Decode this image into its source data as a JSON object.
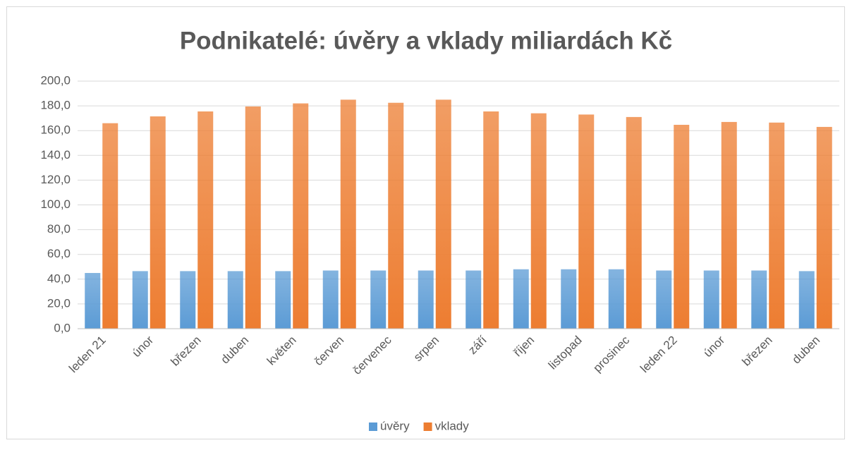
{
  "chart_data": {
    "type": "bar",
    "title": "Podnikatelé: úvěry a vklady miliardách Kč",
    "categories": [
      "leden 21",
      "únor",
      "březen",
      "duben",
      "květen",
      "červen",
      "červenec",
      "srpen",
      "září",
      "říjen",
      "listopad",
      "prosinec",
      "leden 22",
      "únor",
      "březen",
      "duben"
    ],
    "series": [
      {
        "name": "úvěry",
        "color": "#5b9bd5",
        "values": [
          45,
          46.5,
          46.5,
          46.5,
          46.5,
          47,
          47,
          47,
          47,
          48,
          48,
          48,
          47,
          47,
          47,
          46.5
        ]
      },
      {
        "name": "vklady",
        "color": "#ed7d31",
        "values": [
          166,
          171.5,
          175.5,
          179.5,
          182,
          185,
          182.5,
          185,
          175.5,
          174,
          173,
          171,
          164.7,
          167,
          166.5,
          163
        ]
      }
    ],
    "ylim": [
      0,
      200
    ],
    "yticks": [
      {
        "value": 0,
        "label": "0,0"
      },
      {
        "value": 20,
        "label": "20,0"
      },
      {
        "value": 40,
        "label": "40,0"
      },
      {
        "value": 60,
        "label": "60,0"
      },
      {
        "value": 80,
        "label": "80,0"
      },
      {
        "value": 100,
        "label": "100,0"
      },
      {
        "value": 120,
        "label": "120,0"
      },
      {
        "value": 140,
        "label": "140,0"
      },
      {
        "value": 160,
        "label": "160,0"
      },
      {
        "value": 180,
        "label": "180,0"
      },
      {
        "value": 200,
        "label": "200,0"
      }
    ],
    "grid": true,
    "legend": "bottom"
  }
}
